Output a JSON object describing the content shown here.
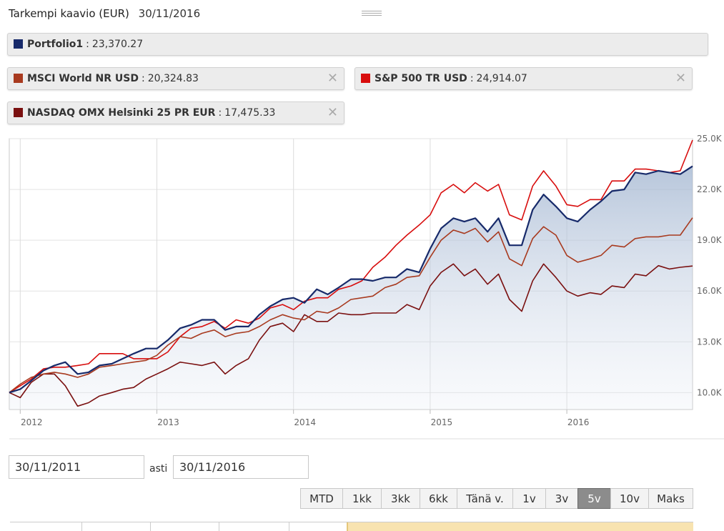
{
  "header": {
    "title": "Tarkempi kaavio (EUR)",
    "date": "30/11/2016"
  },
  "legend": [
    {
      "name": "Portfolio1",
      "value": "23,370.27",
      "color": "#172a6a",
      "closable": false
    },
    {
      "name": "MSCI World NR USD",
      "value": "20,324.83",
      "color": "#a83a1f",
      "closable": true
    },
    {
      "name": "S&P 500 TR USD",
      "value": "24,914.07",
      "color": "#d80d0d",
      "closable": true
    },
    {
      "name": "NASDAQ OMX Helsinki 25 PR EUR",
      "value": "17,475.33",
      "color": "#7a1010",
      "closable": true
    }
  ],
  "icons": {
    "close": "close-icon",
    "drag": "drag-handle-icon"
  },
  "controls": {
    "from_date": "30/11/2011",
    "to_label": "asti",
    "to_date": "30/11/2016",
    "ranges": [
      "MTD",
      "1kk",
      "3kk",
      "6kk",
      "Tänä v.",
      "1v",
      "3v",
      "5v",
      "10v",
      "Maks"
    ],
    "active_range": "5v"
  },
  "chart_data": {
    "type": "line",
    "title": "Tarkempi kaavio (EUR)",
    "xlabel": "",
    "ylabel": "",
    "x_ticks": [
      "2012",
      "2013",
      "2014",
      "2015",
      "2016"
    ],
    "y_ticks": [
      "10.0K",
      "13.0K",
      "16.0K",
      "19.0K",
      "22.0K",
      "25.0K"
    ],
    "xlim": [
      2011.92,
      2016.92
    ],
    "ylim": [
      9000,
      25000
    ],
    "grid": true,
    "area_fill_series": "Portfolio1",
    "series": [
      {
        "name": "Portfolio1",
        "color": "#172a6a",
        "points": [
          [
            2011.92,
            10000
          ],
          [
            2012.0,
            10200
          ],
          [
            2012.08,
            10700
          ],
          [
            2012.17,
            11300
          ],
          [
            2012.25,
            11600
          ],
          [
            2012.33,
            11800
          ],
          [
            2012.42,
            11100
          ],
          [
            2012.5,
            11200
          ],
          [
            2012.58,
            11600
          ],
          [
            2012.67,
            11700
          ],
          [
            2012.75,
            12000
          ],
          [
            2012.83,
            12300
          ],
          [
            2012.92,
            12600
          ],
          [
            2013.0,
            12600
          ],
          [
            2013.08,
            13100
          ],
          [
            2013.17,
            13800
          ],
          [
            2013.25,
            14000
          ],
          [
            2013.33,
            14300
          ],
          [
            2013.42,
            14300
          ],
          [
            2013.5,
            13700
          ],
          [
            2013.58,
            13900
          ],
          [
            2013.67,
            13900
          ],
          [
            2013.75,
            14600
          ],
          [
            2013.83,
            15100
          ],
          [
            2013.92,
            15500
          ],
          [
            2014.0,
            15600
          ],
          [
            2014.08,
            15300
          ],
          [
            2014.17,
            16100
          ],
          [
            2014.25,
            15800
          ],
          [
            2014.33,
            16200
          ],
          [
            2014.42,
            16700
          ],
          [
            2014.5,
            16700
          ],
          [
            2014.58,
            16600
          ],
          [
            2014.67,
            16800
          ],
          [
            2014.75,
            16800
          ],
          [
            2014.83,
            17300
          ],
          [
            2014.92,
            17100
          ],
          [
            2015.0,
            18500
          ],
          [
            2015.08,
            19700
          ],
          [
            2015.17,
            20300
          ],
          [
            2015.25,
            20100
          ],
          [
            2015.33,
            20300
          ],
          [
            2015.42,
            19500
          ],
          [
            2015.5,
            20300
          ],
          [
            2015.58,
            18700
          ],
          [
            2015.67,
            18700
          ],
          [
            2015.75,
            20800
          ],
          [
            2015.83,
            21700
          ],
          [
            2015.92,
            21000
          ],
          [
            2016.0,
            20300
          ],
          [
            2016.08,
            20100
          ],
          [
            2016.17,
            20800
          ],
          [
            2016.25,
            21300
          ],
          [
            2016.33,
            21900
          ],
          [
            2016.42,
            22000
          ],
          [
            2016.5,
            23000
          ],
          [
            2016.58,
            22900
          ],
          [
            2016.67,
            23100
          ],
          [
            2016.75,
            23000
          ],
          [
            2016.83,
            22900
          ],
          [
            2016.92,
            23370
          ]
        ]
      },
      {
        "name": "MSCI World NR USD",
        "color": "#a83a1f",
        "points": [
          [
            2011.92,
            10000
          ],
          [
            2012.0,
            10500
          ],
          [
            2012.08,
            10900
          ],
          [
            2012.17,
            11100
          ],
          [
            2012.25,
            11200
          ],
          [
            2012.33,
            11100
          ],
          [
            2012.42,
            10900
          ],
          [
            2012.5,
            11100
          ],
          [
            2012.58,
            11500
          ],
          [
            2012.67,
            11600
          ],
          [
            2012.75,
            11700
          ],
          [
            2012.83,
            11800
          ],
          [
            2012.92,
            11900
          ],
          [
            2013.0,
            12200
          ],
          [
            2013.08,
            12800
          ],
          [
            2013.17,
            13300
          ],
          [
            2013.25,
            13200
          ],
          [
            2013.33,
            13500
          ],
          [
            2013.42,
            13700
          ],
          [
            2013.5,
            13300
          ],
          [
            2013.58,
            13500
          ],
          [
            2013.67,
            13600
          ],
          [
            2013.75,
            13900
          ],
          [
            2013.83,
            14300
          ],
          [
            2013.92,
            14600
          ],
          [
            2014.0,
            14400
          ],
          [
            2014.08,
            14300
          ],
          [
            2014.17,
            14800
          ],
          [
            2014.25,
            14700
          ],
          [
            2014.33,
            15000
          ],
          [
            2014.42,
            15500
          ],
          [
            2014.5,
            15600
          ],
          [
            2014.58,
            15700
          ],
          [
            2014.67,
            16200
          ],
          [
            2014.75,
            16400
          ],
          [
            2014.83,
            16800
          ],
          [
            2014.92,
            16900
          ],
          [
            2015.0,
            18000
          ],
          [
            2015.08,
            19000
          ],
          [
            2015.17,
            19600
          ],
          [
            2015.25,
            19400
          ],
          [
            2015.33,
            19700
          ],
          [
            2015.42,
            18900
          ],
          [
            2015.5,
            19500
          ],
          [
            2015.58,
            17900
          ],
          [
            2015.67,
            17500
          ],
          [
            2015.75,
            19100
          ],
          [
            2015.83,
            19800
          ],
          [
            2015.92,
            19300
          ],
          [
            2016.0,
            18100
          ],
          [
            2016.08,
            17700
          ],
          [
            2016.17,
            17900
          ],
          [
            2016.25,
            18100
          ],
          [
            2016.33,
            18700
          ],
          [
            2016.42,
            18600
          ],
          [
            2016.5,
            19100
          ],
          [
            2016.58,
            19200
          ],
          [
            2016.67,
            19200
          ],
          [
            2016.75,
            19300
          ],
          [
            2016.83,
            19300
          ],
          [
            2016.92,
            20325
          ]
        ]
      },
      {
        "name": "S&P 500 TR USD",
        "color": "#d80d0d",
        "points": [
          [
            2011.92,
            10000
          ],
          [
            2012.0,
            10400
          ],
          [
            2012.08,
            10800
          ],
          [
            2012.17,
            11400
          ],
          [
            2012.25,
            11500
          ],
          [
            2012.33,
            11500
          ],
          [
            2012.42,
            11600
          ],
          [
            2012.5,
            11700
          ],
          [
            2012.58,
            12300
          ],
          [
            2012.67,
            12300
          ],
          [
            2012.75,
            12300
          ],
          [
            2012.83,
            12000
          ],
          [
            2012.92,
            12000
          ],
          [
            2013.0,
            12000
          ],
          [
            2013.08,
            12400
          ],
          [
            2013.17,
            13300
          ],
          [
            2013.25,
            13800
          ],
          [
            2013.33,
            13900
          ],
          [
            2013.42,
            14200
          ],
          [
            2013.5,
            13800
          ],
          [
            2013.58,
            14300
          ],
          [
            2013.67,
            14100
          ],
          [
            2013.75,
            14400
          ],
          [
            2013.83,
            15000
          ],
          [
            2013.92,
            15200
          ],
          [
            2014.0,
            14900
          ],
          [
            2014.08,
            15400
          ],
          [
            2014.17,
            15600
          ],
          [
            2014.25,
            15600
          ],
          [
            2014.33,
            16100
          ],
          [
            2014.42,
            16300
          ],
          [
            2014.5,
            16600
          ],
          [
            2014.58,
            17400
          ],
          [
            2014.67,
            18000
          ],
          [
            2014.75,
            18700
          ],
          [
            2014.83,
            19300
          ],
          [
            2014.92,
            19900
          ],
          [
            2015.0,
            20500
          ],
          [
            2015.08,
            21800
          ],
          [
            2015.17,
            22300
          ],
          [
            2015.25,
            21800
          ],
          [
            2015.33,
            22400
          ],
          [
            2015.42,
            21900
          ],
          [
            2015.5,
            22300
          ],
          [
            2015.58,
            20500
          ],
          [
            2015.67,
            20200
          ],
          [
            2015.75,
            22200
          ],
          [
            2015.83,
            23100
          ],
          [
            2015.92,
            22200
          ],
          [
            2016.0,
            21100
          ],
          [
            2016.08,
            21000
          ],
          [
            2016.17,
            21400
          ],
          [
            2016.25,
            21400
          ],
          [
            2016.33,
            22500
          ],
          [
            2016.42,
            22500
          ],
          [
            2016.5,
            23200
          ],
          [
            2016.58,
            23200
          ],
          [
            2016.67,
            23100
          ],
          [
            2016.75,
            23000
          ],
          [
            2016.83,
            23100
          ],
          [
            2016.92,
            24914
          ]
        ]
      },
      {
        "name": "NASDAQ OMX Helsinki 25 PR EUR",
        "color": "#7a1010",
        "points": [
          [
            2011.92,
            10000
          ],
          [
            2012.0,
            9700
          ],
          [
            2012.08,
            10600
          ],
          [
            2012.17,
            11100
          ],
          [
            2012.25,
            11100
          ],
          [
            2012.33,
            10400
          ],
          [
            2012.42,
            9200
          ],
          [
            2012.5,
            9400
          ],
          [
            2012.58,
            9800
          ],
          [
            2012.67,
            10000
          ],
          [
            2012.75,
            10200
          ],
          [
            2012.83,
            10300
          ],
          [
            2012.92,
            10800
          ],
          [
            2013.0,
            11100
          ],
          [
            2013.08,
            11400
          ],
          [
            2013.17,
            11800
          ],
          [
            2013.25,
            11700
          ],
          [
            2013.33,
            11600
          ],
          [
            2013.42,
            11800
          ],
          [
            2013.5,
            11100
          ],
          [
            2013.58,
            11600
          ],
          [
            2013.67,
            12000
          ],
          [
            2013.75,
            13100
          ],
          [
            2013.83,
            13900
          ],
          [
            2013.92,
            14100
          ],
          [
            2014.0,
            13600
          ],
          [
            2014.08,
            14600
          ],
          [
            2014.17,
            14200
          ],
          [
            2014.25,
            14200
          ],
          [
            2014.33,
            14700
          ],
          [
            2014.42,
            14600
          ],
          [
            2014.5,
            14600
          ],
          [
            2014.58,
            14700
          ],
          [
            2014.67,
            14700
          ],
          [
            2014.75,
            14700
          ],
          [
            2014.83,
            15200
          ],
          [
            2014.92,
            14900
          ],
          [
            2015.0,
            16300
          ],
          [
            2015.08,
            17100
          ],
          [
            2015.17,
            17600
          ],
          [
            2015.25,
            16900
          ],
          [
            2015.33,
            17300
          ],
          [
            2015.42,
            16400
          ],
          [
            2015.5,
            17000
          ],
          [
            2015.58,
            15500
          ],
          [
            2015.67,
            14800
          ],
          [
            2015.75,
            16600
          ],
          [
            2015.83,
            17600
          ],
          [
            2015.92,
            16800
          ],
          [
            2016.0,
            16000
          ],
          [
            2016.08,
            15700
          ],
          [
            2016.17,
            15900
          ],
          [
            2016.25,
            15800
          ],
          [
            2016.33,
            16300
          ],
          [
            2016.42,
            16200
          ],
          [
            2016.5,
            17000
          ],
          [
            2016.58,
            16900
          ],
          [
            2016.67,
            17500
          ],
          [
            2016.75,
            17300
          ],
          [
            2016.83,
            17400
          ],
          [
            2016.92,
            17475
          ]
        ]
      }
    ]
  }
}
